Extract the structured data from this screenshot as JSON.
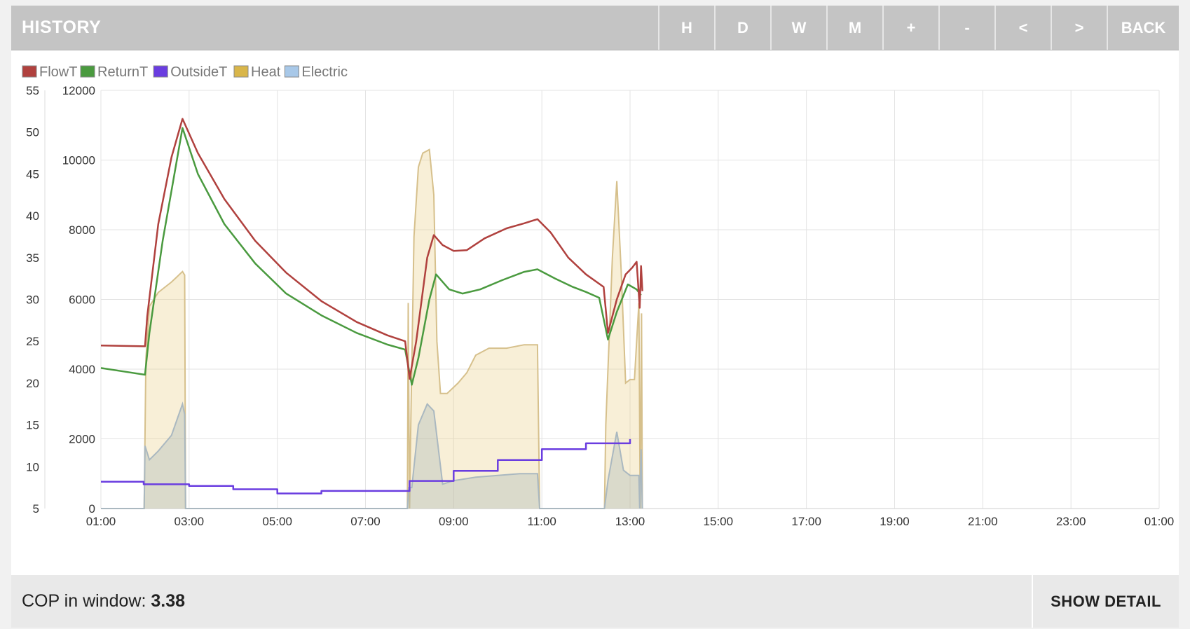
{
  "header": {
    "title": "HISTORY",
    "buttons": [
      {
        "label": "H",
        "name": "hour-button"
      },
      {
        "label": "D",
        "name": "day-button"
      },
      {
        "label": "W",
        "name": "week-button"
      },
      {
        "label": "M",
        "name": "month-button"
      },
      {
        "label": "+",
        "name": "zoom-in-button"
      },
      {
        "label": "-",
        "name": "zoom-out-button"
      },
      {
        "label": "<",
        "name": "pan-left-button"
      },
      {
        "label": ">",
        "name": "pan-right-button"
      },
      {
        "label": "BACK",
        "name": "back-button"
      }
    ]
  },
  "footer": {
    "cop_label": "COP in window:",
    "cop_value": "3.38",
    "show_detail_label": "SHOW DETAIL"
  },
  "chart_data": {
    "type": "line",
    "grid": true,
    "legend_position": "top-left",
    "x_ticks": [
      "01:00",
      "03:00",
      "05:00",
      "07:00",
      "09:00",
      "11:00",
      "13:00",
      "15:00",
      "17:00",
      "19:00",
      "21:00",
      "23:00",
      "01:00"
    ],
    "x_range_hours": [
      1,
      25
    ],
    "y_left": {
      "label": "",
      "range": [
        5,
        55
      ],
      "ticks": [
        5,
        10,
        15,
        20,
        25,
        30,
        35,
        40,
        45,
        50,
        55
      ]
    },
    "y_right": {
      "label": "",
      "range": [
        0,
        12000
      ],
      "ticks": [
        0,
        2000,
        4000,
        6000,
        8000,
        10000,
        12000
      ]
    },
    "series": [
      {
        "name": "FlowT",
        "axis": "left",
        "color": "#b0413e",
        "kind": "line",
        "points": [
          [
            1.0,
            24.5
          ],
          [
            2.0,
            24.4
          ],
          [
            2.05,
            28
          ],
          [
            2.3,
            39
          ],
          [
            2.6,
            47
          ],
          [
            2.85,
            51.6
          ],
          [
            3.2,
            47.5
          ],
          [
            3.8,
            42
          ],
          [
            4.5,
            37
          ],
          [
            5.2,
            33.2
          ],
          [
            6.0,
            29.8
          ],
          [
            6.8,
            27.3
          ],
          [
            7.5,
            25.7
          ],
          [
            7.9,
            25
          ],
          [
            8.0,
            20.5
          ],
          [
            8.15,
            25
          ],
          [
            8.4,
            35
          ],
          [
            8.55,
            37.7
          ],
          [
            8.75,
            36.5
          ],
          [
            9.0,
            35.8
          ],
          [
            9.3,
            35.9
          ],
          [
            9.7,
            37.3
          ],
          [
            10.2,
            38.5
          ],
          [
            10.6,
            39.1
          ],
          [
            10.9,
            39.6
          ],
          [
            11.2,
            38
          ],
          [
            11.6,
            35
          ],
          [
            12.0,
            33
          ],
          [
            12.4,
            31.5
          ],
          [
            12.5,
            26
          ],
          [
            12.7,
            30
          ],
          [
            12.9,
            33
          ],
          [
            13.05,
            33.8
          ],
          [
            13.15,
            34.5
          ],
          [
            13.22,
            29
          ],
          [
            13.25,
            34
          ],
          [
            13.28,
            31
          ]
        ]
      },
      {
        "name": "ReturnT",
        "axis": "left",
        "color": "#4a9a3f",
        "kind": "line",
        "points": [
          [
            1.0,
            21.8
          ],
          [
            1.5,
            21.4
          ],
          [
            2.0,
            21
          ],
          [
            2.1,
            26
          ],
          [
            2.4,
            37
          ],
          [
            2.6,
            43
          ],
          [
            2.85,
            50.5
          ],
          [
            3.2,
            45
          ],
          [
            3.8,
            39
          ],
          [
            4.5,
            34.3
          ],
          [
            5.2,
            30.7
          ],
          [
            6.0,
            28.1
          ],
          [
            6.8,
            26
          ],
          [
            7.5,
            24.6
          ],
          [
            7.9,
            24
          ],
          [
            8.05,
            19.8
          ],
          [
            8.2,
            23
          ],
          [
            8.45,
            30
          ],
          [
            8.6,
            33
          ],
          [
            8.9,
            31.2
          ],
          [
            9.2,
            30.7
          ],
          [
            9.6,
            31.2
          ],
          [
            10.1,
            32.3
          ],
          [
            10.6,
            33.3
          ],
          [
            10.9,
            33.6
          ],
          [
            11.3,
            32.5
          ],
          [
            11.7,
            31.5
          ],
          [
            12.0,
            30.9
          ],
          [
            12.3,
            30.2
          ],
          [
            12.5,
            25.2
          ],
          [
            12.7,
            28.5
          ],
          [
            12.95,
            31.8
          ],
          [
            13.15,
            31.2
          ],
          [
            13.25,
            30.5
          ]
        ]
      },
      {
        "name": "OutsideT",
        "axis": "left",
        "color": "#6a3de0",
        "kind": "step",
        "points": [
          [
            1.0,
            8.2
          ],
          [
            1.97,
            8.2
          ],
          [
            1.97,
            7.9
          ],
          [
            3.0,
            7.9
          ],
          [
            3.0,
            7.7
          ],
          [
            4.0,
            7.7
          ],
          [
            4.0,
            7.3
          ],
          [
            5.0,
            7.3
          ],
          [
            5.0,
            6.8
          ],
          [
            6.0,
            6.8
          ],
          [
            6.0,
            7.1
          ],
          [
            8.0,
            7.1
          ],
          [
            8.0,
            8.3
          ],
          [
            9.0,
            8.3
          ],
          [
            9.0,
            9.5
          ],
          [
            10.0,
            9.5
          ],
          [
            10.0,
            10.8
          ],
          [
            11.0,
            10.8
          ],
          [
            11.0,
            12.1
          ],
          [
            12.0,
            12.1
          ],
          [
            12.0,
            12.8
          ],
          [
            13.0,
            12.8
          ],
          [
            13.0,
            13.3
          ]
        ]
      },
      {
        "name": "Heat",
        "axis": "right",
        "color": "#d9b64a",
        "kind": "area",
        "points": [
          [
            1.0,
            0
          ],
          [
            1.98,
            0
          ],
          [
            2.02,
            4300
          ],
          [
            2.1,
            5800
          ],
          [
            2.3,
            6200
          ],
          [
            2.6,
            6500
          ],
          [
            2.85,
            6800
          ],
          [
            2.9,
            6700
          ],
          [
            2.92,
            0
          ],
          [
            7.95,
            0
          ],
          [
            7.97,
            5900
          ],
          [
            8.0,
            0
          ],
          [
            8.03,
            2600
          ],
          [
            8.1,
            7800
          ],
          [
            8.2,
            9800
          ],
          [
            8.3,
            10200
          ],
          [
            8.45,
            10300
          ],
          [
            8.55,
            9000
          ],
          [
            8.62,
            4800
          ],
          [
            8.7,
            3300
          ],
          [
            8.85,
            3300
          ],
          [
            9.1,
            3600
          ],
          [
            9.3,
            3900
          ],
          [
            9.5,
            4400
          ],
          [
            9.8,
            4600
          ],
          [
            10.2,
            4600
          ],
          [
            10.6,
            4700
          ],
          [
            10.9,
            4700
          ],
          [
            10.95,
            0
          ],
          [
            12.42,
            0
          ],
          [
            12.45,
            2400
          ],
          [
            12.5,
            4000
          ],
          [
            12.6,
            7200
          ],
          [
            12.7,
            9400
          ],
          [
            12.8,
            6800
          ],
          [
            12.9,
            3600
          ],
          [
            13.0,
            3700
          ],
          [
            13.1,
            3700
          ],
          [
            13.2,
            5900
          ],
          [
            13.23,
            0
          ],
          [
            13.26,
            5600
          ],
          [
            13.28,
            0
          ]
        ]
      },
      {
        "name": "Electric",
        "axis": "right",
        "color": "#a8c8e8",
        "kind": "area",
        "points": [
          [
            1.0,
            0
          ],
          [
            1.98,
            0
          ],
          [
            2.0,
            1800
          ],
          [
            2.1,
            1400
          ],
          [
            2.3,
            1650
          ],
          [
            2.6,
            2100
          ],
          [
            2.85,
            3000
          ],
          [
            2.9,
            2700
          ],
          [
            2.92,
            0
          ],
          [
            7.95,
            0
          ],
          [
            7.98,
            600
          ],
          [
            8.05,
            600
          ],
          [
            8.2,
            2400
          ],
          [
            8.4,
            3000
          ],
          [
            8.55,
            2800
          ],
          [
            8.75,
            700
          ],
          [
            9.0,
            800
          ],
          [
            9.5,
            900
          ],
          [
            10.0,
            950
          ],
          [
            10.5,
            1000
          ],
          [
            10.9,
            1000
          ],
          [
            10.95,
            0
          ],
          [
            12.42,
            0
          ],
          [
            12.5,
            800
          ],
          [
            12.7,
            2200
          ],
          [
            12.85,
            1100
          ],
          [
            13.0,
            950
          ],
          [
            13.2,
            950
          ],
          [
            13.22,
            0
          ],
          [
            13.25,
            1700
          ],
          [
            13.28,
            0
          ]
        ]
      }
    ]
  }
}
